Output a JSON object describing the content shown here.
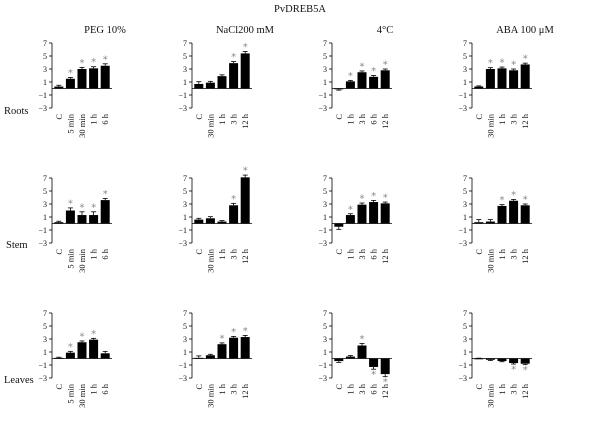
{
  "title": "PvDREB5A",
  "columns": [
    "PEG 10%",
    "NaCl200 mM",
    "4°C",
    "ABA 100 μM"
  ],
  "rows": [
    "Roots",
    "Stem",
    "Leaves"
  ],
  "y_ticks": [
    "7",
    "5",
    "3",
    "1",
    "−1",
    "−3"
  ],
  "colors": {
    "bar": "#000000",
    "star": "#888888",
    "axis": "#000000"
  },
  "chart_data": [
    {
      "type": "bar",
      "row": "Roots",
      "column": "PEG 10%",
      "categories": [
        "C",
        "5 min",
        "30 min",
        "1 h",
        "6 h"
      ],
      "values": [
        0.3,
        1.5,
        3.0,
        3.1,
        3.5
      ],
      "errors": [
        0.2,
        0.2,
        0.25,
        0.25,
        0.3
      ],
      "significant": [
        false,
        true,
        true,
        true,
        true
      ],
      "ylim": [
        -3,
        7
      ]
    },
    {
      "type": "bar",
      "row": "Roots",
      "column": "NaCl200 mM",
      "categories": [
        "C",
        "30 min",
        "1 h",
        "3 h",
        "12 h"
      ],
      "values": [
        0.7,
        0.9,
        1.9,
        3.9,
        5.4
      ],
      "errors": [
        0.35,
        0.2,
        0.2,
        0.25,
        0.3
      ],
      "significant": [
        false,
        false,
        false,
        true,
        true
      ],
      "ylim": [
        -3,
        7
      ]
    },
    {
      "type": "bar",
      "row": "Roots",
      "column": "4°C",
      "categories": [
        "C",
        "1 h",
        "3 h",
        "6 h",
        "12 h"
      ],
      "values": [
        -0.1,
        1.1,
        2.5,
        1.8,
        2.8
      ],
      "errors": [
        0.15,
        0.15,
        0.2,
        0.2,
        0.2
      ],
      "significant": [
        false,
        true,
        true,
        true,
        true
      ],
      "ylim": [
        -3,
        7
      ]
    },
    {
      "type": "bar",
      "row": "Roots",
      "column": "ABA 100 μM",
      "categories": [
        "C",
        "30 min",
        "1 h",
        "3 h",
        "12 h"
      ],
      "values": [
        0.3,
        3.0,
        3.1,
        2.8,
        3.7
      ],
      "errors": [
        0.1,
        0.2,
        0.2,
        0.2,
        0.2
      ],
      "significant": [
        false,
        true,
        true,
        true,
        true
      ],
      "ylim": [
        -3,
        7
      ]
    },
    {
      "type": "bar",
      "row": "Stem",
      "column": "PEG 10%",
      "categories": [
        "C",
        "5 min",
        "30 min",
        "1 h",
        "6 h"
      ],
      "values": [
        0.2,
        2.0,
        1.3,
        1.3,
        3.6
      ],
      "errors": [
        0.15,
        0.4,
        0.5,
        0.5,
        0.25
      ],
      "significant": [
        false,
        true,
        true,
        true,
        true
      ],
      "ylim": [
        -3,
        7
      ]
    },
    {
      "type": "bar",
      "row": "Stem",
      "column": "NaCl200 mM",
      "categories": [
        "C",
        "30 min",
        "1 h",
        "3 h",
        "12 h"
      ],
      "values": [
        0.6,
        0.8,
        0.3,
        2.8,
        7.1
      ],
      "errors": [
        0.2,
        0.25,
        0.15,
        0.3,
        0.35
      ],
      "significant": [
        false,
        false,
        false,
        true,
        true
      ],
      "ylim": [
        -3,
        7
      ]
    },
    {
      "type": "bar",
      "row": "Stem",
      "column": "4°C",
      "categories": [
        "C",
        "1 h",
        "3 h",
        "6 h",
        "12 h"
      ],
      "values": [
        -0.5,
        1.3,
        2.9,
        3.3,
        3.1
      ],
      "errors": [
        0.4,
        0.2,
        0.25,
        0.25,
        0.2
      ],
      "significant": [
        false,
        true,
        true,
        true,
        true
      ],
      "ylim": [
        -3,
        7
      ]
    },
    {
      "type": "bar",
      "row": "Stem",
      "column": "ABA 100 μM",
      "categories": [
        "C",
        "30 min",
        "1 h",
        "3 h",
        "12 h"
      ],
      "values": [
        0.2,
        0.3,
        2.7,
        3.5,
        2.8
      ],
      "errors": [
        0.4,
        0.3,
        0.2,
        0.2,
        0.2
      ],
      "significant": [
        false,
        false,
        true,
        true,
        true
      ],
      "ylim": [
        -3,
        7
      ]
    },
    {
      "type": "bar",
      "row": "Leaves",
      "column": "PEG 10%",
      "categories": [
        "C",
        "5 min",
        "30 min",
        "1 h",
        "6 h"
      ],
      "values": [
        0.1,
        0.9,
        2.5,
        2.9,
        0.8
      ],
      "errors": [
        0.1,
        0.2,
        0.2,
        0.2,
        0.3
      ],
      "significant": [
        false,
        true,
        true,
        true,
        false
      ],
      "ylim": [
        -3,
        7
      ]
    },
    {
      "type": "bar",
      "row": "Leaves",
      "column": "NaCl200 mM",
      "categories": [
        "C",
        "30 min",
        "1 h",
        "3 h",
        "12 h"
      ],
      "values": [
        0.1,
        0.5,
        2.2,
        3.2,
        3.3
      ],
      "errors": [
        0.3,
        0.15,
        0.2,
        0.2,
        0.25
      ],
      "significant": [
        false,
        false,
        true,
        true,
        true
      ],
      "ylim": [
        -3,
        7
      ]
    },
    {
      "type": "bar",
      "row": "Leaves",
      "column": "4°C",
      "categories": [
        "C",
        "1 h",
        "3 h",
        "6 h",
        "12 h"
      ],
      "values": [
        -0.4,
        0.3,
        2.0,
        -1.3,
        -2.4
      ],
      "errors": [
        0.2,
        0.15,
        0.3,
        0.35,
        0.4
      ],
      "significant": [
        false,
        false,
        true,
        true,
        true
      ],
      "ylim": [
        -3,
        7
      ]
    },
    {
      "type": "bar",
      "row": "Leaves",
      "column": "ABA 100 μM",
      "categories": [
        "C",
        "30 min",
        "1 h",
        "3 h",
        "12 h"
      ],
      "values": [
        0.0,
        -0.2,
        -0.4,
        -0.7,
        -0.8
      ],
      "errors": [
        0.05,
        0.1,
        0.1,
        0.15,
        0.15
      ],
      "significant": [
        false,
        false,
        false,
        true,
        true
      ],
      "ylim": [
        -3,
        7
      ]
    }
  ]
}
